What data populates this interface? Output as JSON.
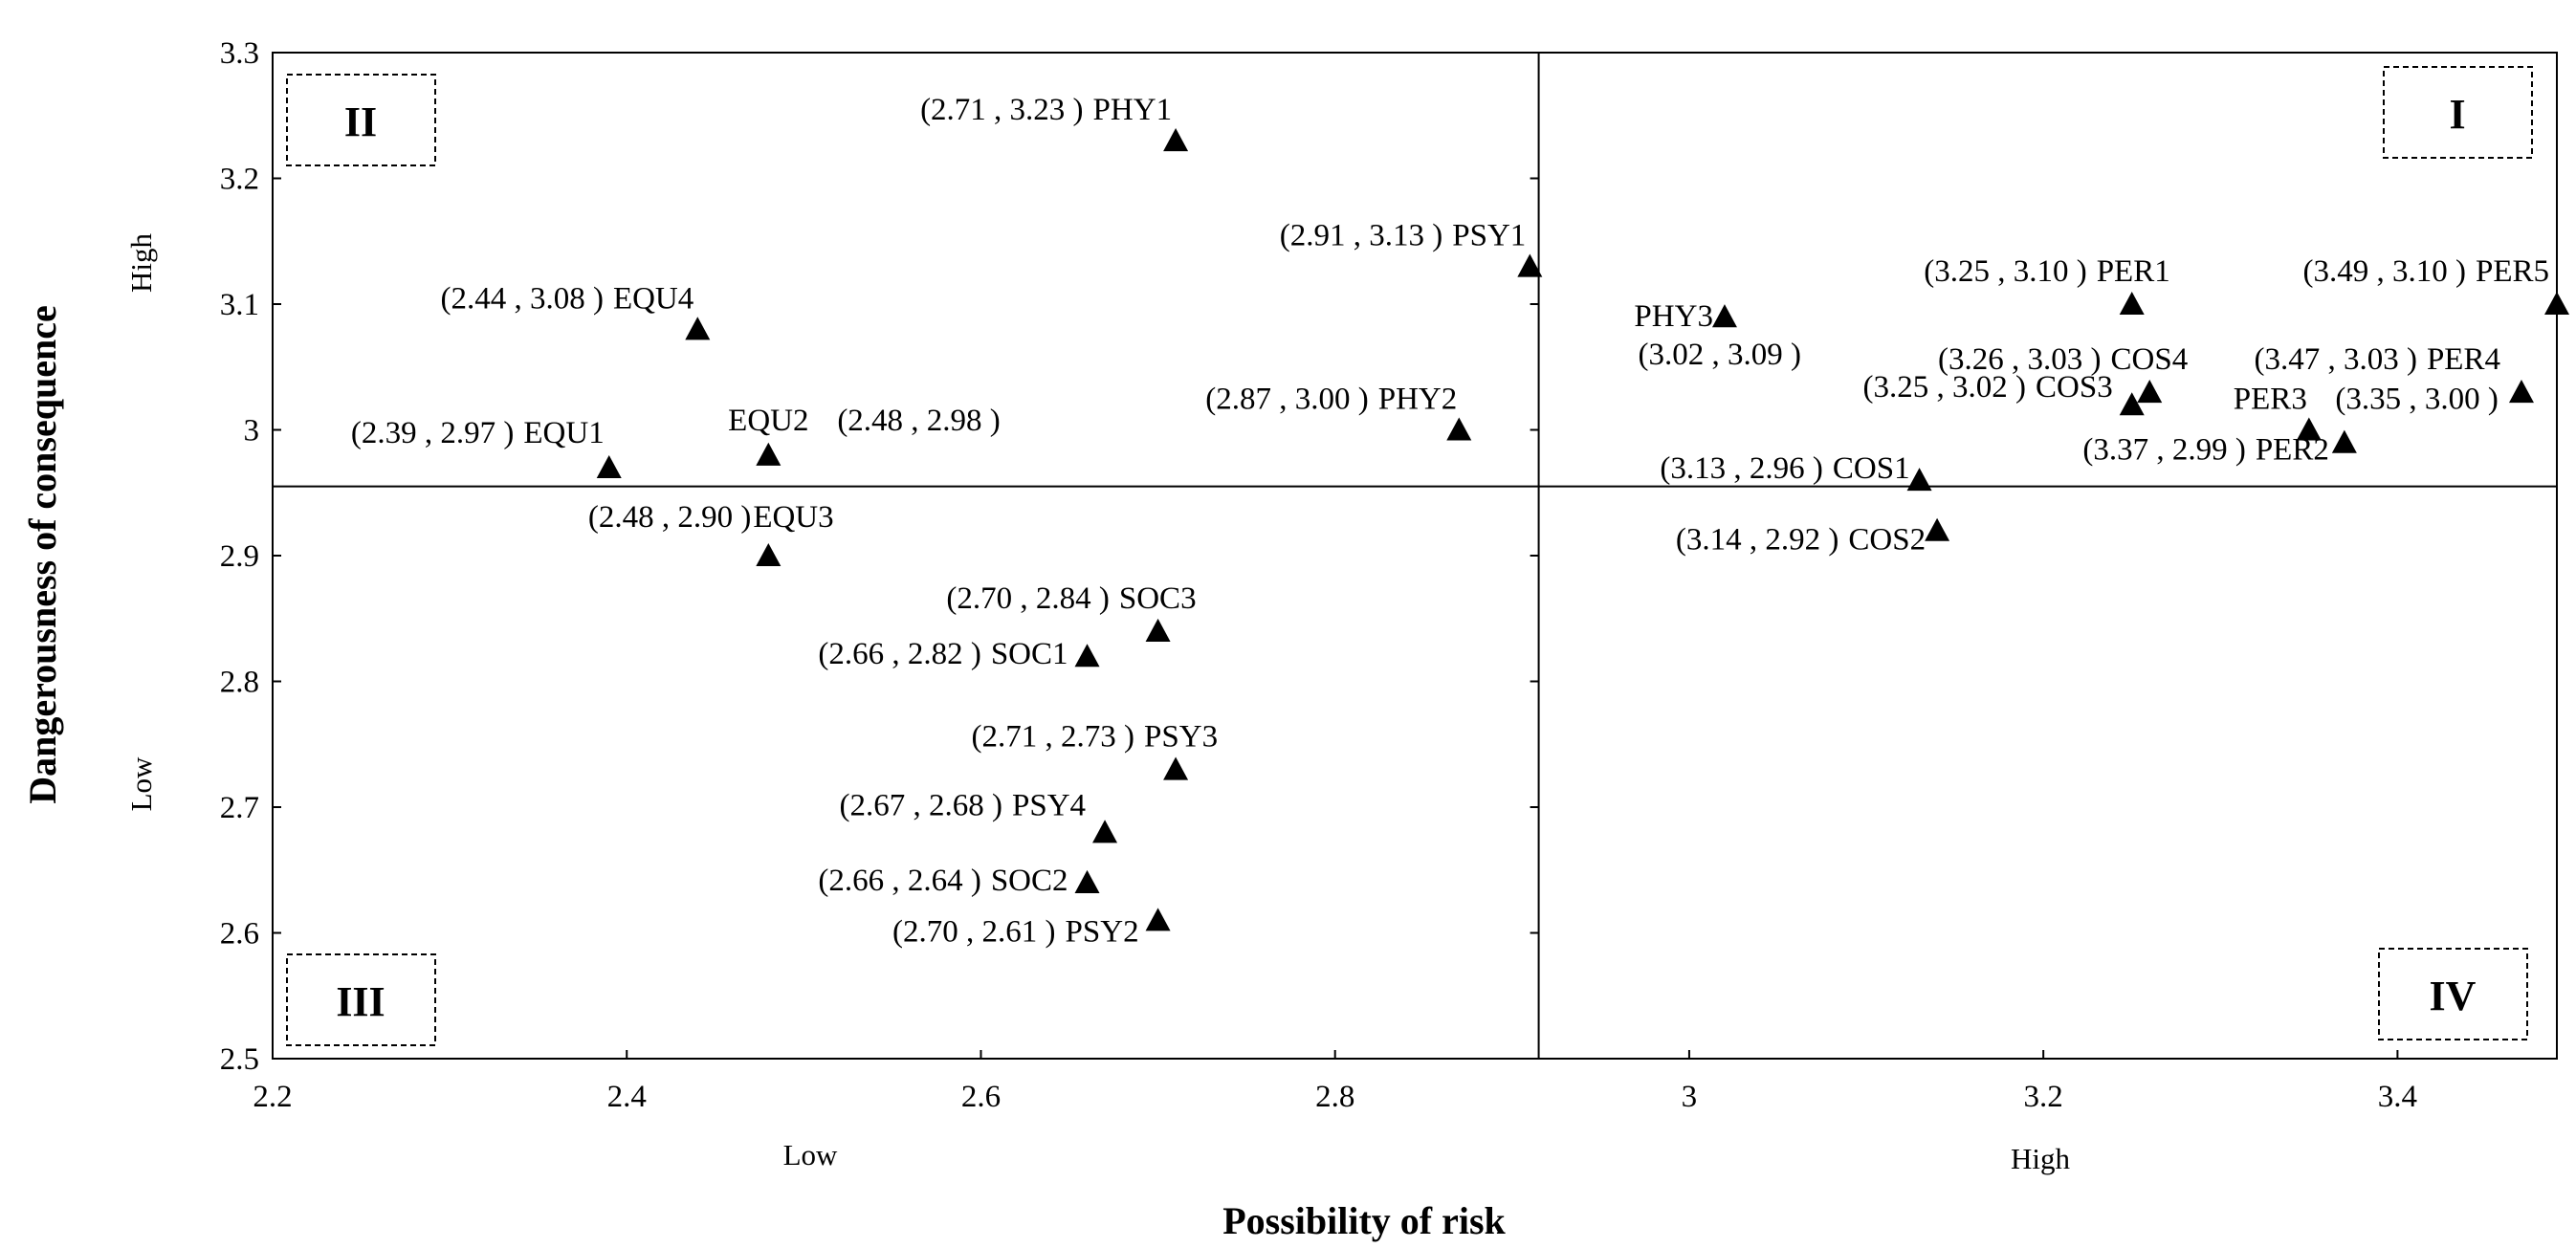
{
  "chart_data": {
    "type": "scatter",
    "title": "",
    "xlabel": "Possibility of risk",
    "ylabel": "Dangerousness of consequence",
    "xlim": [
      2.2,
      3.49
    ],
    "ylim": [
      2.5,
      3.3
    ],
    "x_ticks": [
      "2.2",
      "2.4",
      "2.6",
      "2.8",
      "3",
      "3.2",
      "3.4"
    ],
    "y_ticks": [
      "2.5",
      "2.6",
      "2.7",
      "2.8",
      "2.9",
      "3",
      "3.1",
      "3.2",
      "3.3"
    ],
    "divider_x": 2.915,
    "divider_y": 2.955,
    "x_low_label": "Low",
    "x_high_label": "High",
    "y_low_label": "Low",
    "y_high_label": "High",
    "quadrants": [
      "I",
      "II",
      "III",
      "IV"
    ],
    "points": [
      {
        "name": "PHY1",
        "x": 2.71,
        "y": 3.23,
        "coord": "(2.71 , 3.23 )",
        "label": "PHY1"
      },
      {
        "name": "PSY1",
        "x": 2.91,
        "y": 3.13,
        "coord": "(2.91 , 3.13 )",
        "label": "PSY1"
      },
      {
        "name": "EQU4",
        "x": 2.44,
        "y": 3.08,
        "coord": "(2.44 , 3.08 )",
        "label": "EQU4"
      },
      {
        "name": "EQU1",
        "x": 2.39,
        "y": 2.97,
        "coord": "(2.39 , 2.97 )",
        "label": "EQU1"
      },
      {
        "name": "EQU2",
        "x": 2.48,
        "y": 2.98,
        "coord": "(2.48 , 2.98 )",
        "label": "EQU2"
      },
      {
        "name": "PHY2",
        "x": 2.87,
        "y": 3.0,
        "coord": "(2.87 , 3.00 )",
        "label": "PHY2"
      },
      {
        "name": "EQU3",
        "x": 2.48,
        "y": 2.9,
        "coord": "(2.48 , 2.90 )",
        "label": "EQU3"
      },
      {
        "name": "SOC3",
        "x": 2.7,
        "y": 2.84,
        "coord": "(2.70 , 2.84 )",
        "label": "SOC3"
      },
      {
        "name": "SOC1",
        "x": 2.66,
        "y": 2.82,
        "coord": "(2.66 , 2.82 )",
        "label": "SOC1"
      },
      {
        "name": "PSY3",
        "x": 2.71,
        "y": 2.73,
        "coord": "(2.71 , 2.73 )",
        "label": "PSY3"
      },
      {
        "name": "PSY4",
        "x": 2.67,
        "y": 2.68,
        "coord": "(2.67 , 2.68 )",
        "label": "PSY4"
      },
      {
        "name": "SOC2",
        "x": 2.66,
        "y": 2.64,
        "coord": "(2.66 , 2.64 )",
        "label": "SOC2"
      },
      {
        "name": "PSY2",
        "x": 2.7,
        "y": 2.61,
        "coord": "(2.70 , 2.61 )",
        "label": "PSY2"
      },
      {
        "name": "PHY3",
        "x": 3.02,
        "y": 3.09,
        "coord": "(3.02 , 3.09 )",
        "label": "PHY3"
      },
      {
        "name": "PER1",
        "x": 3.25,
        "y": 3.1,
        "coord": "(3.25 , 3.10 )",
        "label": "PER1"
      },
      {
        "name": "PER5",
        "x": 3.49,
        "y": 3.1,
        "coord": "(3.49 , 3.10 )",
        "label": "PER5"
      },
      {
        "name": "COS4",
        "x": 3.26,
        "y": 3.03,
        "coord": "(3.26 , 3.03 )",
        "label": "COS4"
      },
      {
        "name": "PER4",
        "x": 3.47,
        "y": 3.03,
        "coord": "(3.47 , 3.03 )",
        "label": "PER4"
      },
      {
        "name": "COS3",
        "x": 3.25,
        "y": 3.02,
        "coord": "(3.25 , 3.02 )",
        "label": "COS3"
      },
      {
        "name": "PER3",
        "x": 3.35,
        "y": 3.0,
        "coord": "(3.35 , 3.00 )",
        "label": "PER3"
      },
      {
        "name": "PER2",
        "x": 3.37,
        "y": 2.99,
        "coord": "(3.37 , 2.99 )",
        "label": "PER2"
      },
      {
        "name": "COS1",
        "x": 3.13,
        "y": 2.96,
        "coord": "(3.13 , 2.96 )",
        "label": "COS1"
      },
      {
        "name": "COS2",
        "x": 3.14,
        "y": 2.92,
        "coord": "(3.14 , 2.92 )",
        "label": "COS2"
      }
    ]
  }
}
